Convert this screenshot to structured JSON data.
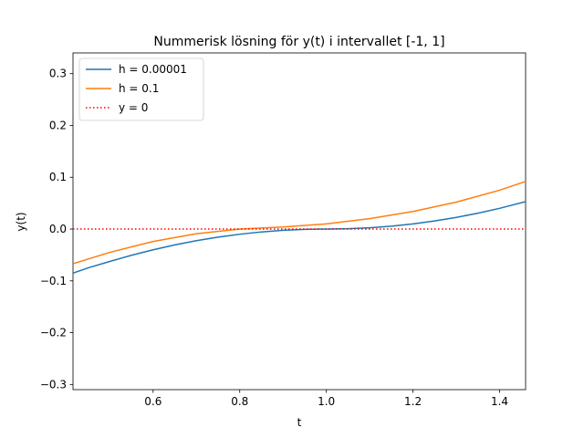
{
  "chart_data": {
    "type": "line",
    "title": "Nummerisk lösning för y(t) i intervallet [-1, 1]",
    "xlabel": "t",
    "ylabel": "y(t)",
    "xlim": [
      0.415,
      1.46
    ],
    "ylim": [
      -0.31,
      0.34
    ],
    "xticks": [
      0.6,
      0.8,
      1.0,
      1.2,
      1.4
    ],
    "xtick_labels": [
      "0.6",
      "0.8",
      "1.0",
      "1.2",
      "1.4"
    ],
    "yticks": [
      -0.3,
      -0.2,
      -0.1,
      0.0,
      0.1,
      0.2,
      0.3
    ],
    "ytick_labels": [
      "−0.3",
      "−0.2",
      "−0.1",
      "0.0",
      "0.1",
      "0.2",
      "0.3"
    ],
    "grid": false,
    "legend_position": "top-left",
    "series": [
      {
        "name": "h = 0.00001",
        "color": "#1f77b4",
        "style": "solid",
        "x": [
          0.415,
          0.45,
          0.5,
          0.55,
          0.6,
          0.65,
          0.7,
          0.75,
          0.8,
          0.85,
          0.9,
          0.95,
          1.0,
          1.05,
          1.1,
          1.15,
          1.2,
          1.25,
          1.3,
          1.35,
          1.4,
          1.46
        ],
        "y": [
          -0.085,
          -0.0749,
          -0.0625,
          -0.0506,
          -0.04,
          -0.0306,
          -0.0225,
          -0.0156,
          -0.01,
          -0.0056,
          -0.0025,
          -0.0006,
          0.0,
          0.0006,
          0.0025,
          0.0056,
          0.01,
          0.0156,
          0.0225,
          0.0306,
          0.04,
          0.053
        ]
      },
      {
        "name": "h = 0.1",
        "color": "#ff7f0e",
        "style": "solid",
        "x": [
          0.415,
          0.5,
          0.6,
          0.7,
          0.8,
          0.9,
          1.0,
          1.1,
          1.2,
          1.3,
          1.4,
          1.46
        ],
        "y": [
          -0.067,
          -0.045,
          -0.024,
          -0.009,
          0.0,
          0.004,
          0.01,
          0.02,
          0.034,
          0.052,
          0.075,
          0.092
        ]
      },
      {
        "name": "y = 0",
        "color": "#ff0000",
        "style": "dotted",
        "x": [
          0.415,
          1.46
        ],
        "y": [
          0.0,
          0.0
        ]
      }
    ]
  }
}
